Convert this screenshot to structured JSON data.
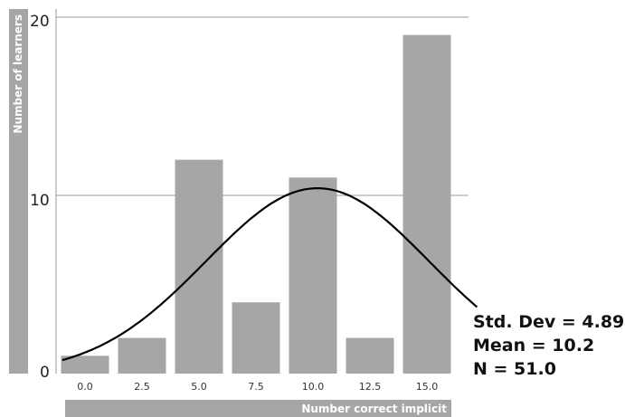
{
  "chart_data": {
    "type": "bar",
    "categories": [
      "0.0",
      "2.5",
      "5.0",
      "7.5",
      "10.0",
      "12.5",
      "15.0"
    ],
    "values": [
      1,
      2,
      12,
      4,
      11,
      2,
      19
    ],
    "xlabel": "Number correct implicit",
    "ylabel": "Number of learners",
    "ylim": [
      0,
      20
    ],
    "yticks": [
      "0",
      "10",
      "20"
    ],
    "grid": "horizontal at 10 and 20",
    "normal_curve": {
      "mean": 10.2,
      "std": 4.89,
      "n": 51.0,
      "bin_width": 2.5
    },
    "colors": {
      "bar": "#a6a6a6",
      "curve": "#000000",
      "axis_bg": "#a6a6a6",
      "grid": "#999999"
    }
  },
  "stats": {
    "std_dev": "Std. Dev = 4.89",
    "mean": "Mean = 10.2",
    "n": "N = 51.0"
  }
}
